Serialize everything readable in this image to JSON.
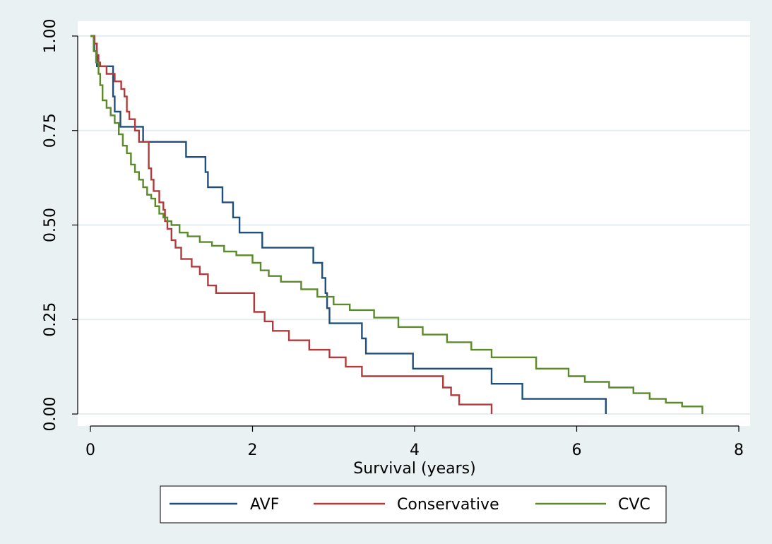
{
  "chart_data": {
    "type": "line",
    "step": true,
    "title": "",
    "xlabel": "Survival (years)",
    "ylabel": "",
    "xlim": [
      0,
      8
    ],
    "ylim": [
      0,
      1
    ],
    "xticks": [
      0,
      2,
      4,
      6,
      8
    ],
    "xtick_labels": [
      "0",
      "2",
      "4",
      "6",
      "8"
    ],
    "yticks": [
      0,
      0.25,
      0.5,
      0.75,
      1
    ],
    "ytick_labels": [
      "0.00",
      "0.25",
      "0.50",
      "0.75",
      "1.00"
    ],
    "grid": "horizontal",
    "legend_position": "bottom",
    "series": [
      {
        "name": "AVF",
        "color": "#1f4f7a",
        "x": [
          0,
          0.05,
          0.08,
          0.28,
          0.3,
          0.37,
          0.65,
          1.18,
          1.42,
          1.45,
          1.63,
          1.76,
          1.84,
          2.12,
          2.75,
          2.86,
          2.9,
          2.92,
          2.95,
          3.35,
          3.4,
          3.98,
          4.95,
          5.33,
          6.36
        ],
        "y": [
          1,
          0.96,
          0.92,
          0.84,
          0.8,
          0.76,
          0.72,
          0.68,
          0.64,
          0.6,
          0.56,
          0.52,
          0.48,
          0.44,
          0.4,
          0.36,
          0.32,
          0.28,
          0.24,
          0.2,
          0.16,
          0.12,
          0.08,
          0.04,
          0
        ]
      },
      {
        "name": "Conservative",
        "color": "#b33a3a",
        "x": [
          0,
          0.05,
          0.08,
          0.1,
          0.12,
          0.2,
          0.3,
          0.38,
          0.42,
          0.45,
          0.48,
          0.55,
          0.6,
          0.72,
          0.75,
          0.78,
          0.85,
          0.9,
          0.92,
          0.95,
          1.0,
          1.05,
          1.12,
          1.25,
          1.35,
          1.45,
          1.55,
          1.6,
          2.02,
          2.15,
          2.25,
          2.45,
          2.7,
          2.95,
          3.15,
          3.35,
          4.35,
          4.45,
          4.55,
          4.95
        ],
        "y": [
          1,
          0.98,
          0.95,
          0.93,
          0.92,
          0.9,
          0.88,
          0.86,
          0.84,
          0.8,
          0.78,
          0.75,
          0.72,
          0.65,
          0.62,
          0.59,
          0.56,
          0.54,
          0.51,
          0.49,
          0.46,
          0.44,
          0.41,
          0.39,
          0.37,
          0.34,
          0.32,
          0.32,
          0.27,
          0.245,
          0.22,
          0.195,
          0.17,
          0.15,
          0.125,
          0.1,
          0.07,
          0.05,
          0.025,
          0
        ]
      },
      {
        "name": "CVC",
        "color": "#5a8a2a",
        "x": [
          0,
          0.04,
          0.07,
          0.1,
          0.12,
          0.15,
          0.2,
          0.25,
          0.3,
          0.35,
          0.4,
          0.45,
          0.5,
          0.55,
          0.6,
          0.65,
          0.7,
          0.75,
          0.8,
          0.85,
          0.9,
          0.95,
          1.0,
          1.1,
          1.2,
          1.35,
          1.5,
          1.65,
          1.8,
          2.0,
          2.1,
          2.2,
          2.35,
          2.6,
          2.8,
          3.0,
          3.2,
          3.5,
          3.8,
          4.1,
          4.4,
          4.7,
          4.95,
          5.5,
          5.9,
          6.1,
          6.4,
          6.7,
          6.9,
          7.1,
          7.3,
          7.55
        ],
        "y": [
          1,
          0.96,
          0.93,
          0.9,
          0.87,
          0.83,
          0.81,
          0.79,
          0.77,
          0.74,
          0.71,
          0.69,
          0.66,
          0.64,
          0.62,
          0.6,
          0.58,
          0.57,
          0.55,
          0.53,
          0.52,
          0.51,
          0.5,
          0.48,
          0.47,
          0.455,
          0.445,
          0.43,
          0.42,
          0.4,
          0.38,
          0.365,
          0.35,
          0.33,
          0.31,
          0.29,
          0.275,
          0.255,
          0.23,
          0.21,
          0.19,
          0.17,
          0.15,
          0.12,
          0.1,
          0.085,
          0.07,
          0.055,
          0.04,
          0.03,
          0.02,
          0
        ]
      }
    ]
  }
}
